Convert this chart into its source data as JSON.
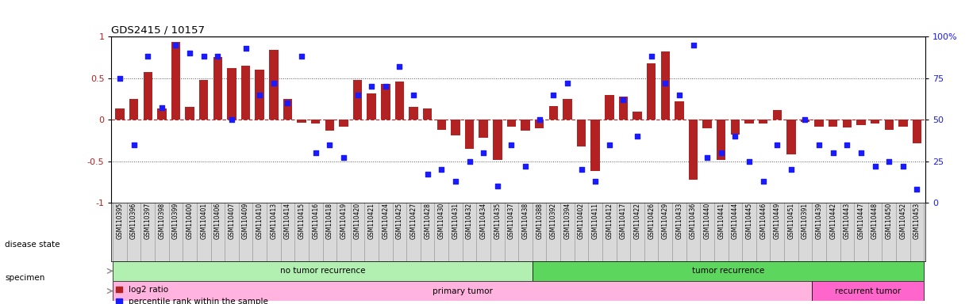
{
  "title": "GDS2415 / 10157",
  "samples": [
    "GSM110395",
    "GSM110396",
    "GSM110397",
    "GSM110398",
    "GSM110399",
    "GSM110400",
    "GSM110401",
    "GSM110406",
    "GSM110407",
    "GSM110409",
    "GSM110410",
    "GSM110413",
    "GSM110414",
    "GSM110415",
    "GSM110416",
    "GSM110418",
    "GSM110419",
    "GSM110420",
    "GSM110421",
    "GSM110424",
    "GSM110425",
    "GSM110427",
    "GSM110428",
    "GSM110430",
    "GSM110431",
    "GSM110432",
    "GSM110434",
    "GSM110435",
    "GSM110437",
    "GSM110438",
    "GSM110388",
    "GSM110392",
    "GSM110394",
    "GSM110402",
    "GSM110411",
    "GSM110412",
    "GSM110417",
    "GSM110422",
    "GSM110426",
    "GSM110429",
    "GSM110433",
    "GSM110436",
    "GSM110440",
    "GSM110441",
    "GSM110444",
    "GSM110445",
    "GSM110446",
    "GSM110449",
    "GSM110451",
    "GSM110391",
    "GSM110439",
    "GSM110442",
    "GSM110443",
    "GSM110447",
    "GSM110448",
    "GSM110450",
    "GSM110452",
    "GSM110453"
  ],
  "log2_ratio": [
    0.13,
    0.25,
    0.57,
    0.13,
    0.93,
    0.15,
    0.48,
    0.75,
    0.62,
    0.65,
    0.6,
    0.84,
    0.25,
    -0.04,
    -0.05,
    -0.13,
    -0.08,
    0.48,
    0.32,
    0.43,
    0.46,
    0.15,
    0.13,
    -0.12,
    -0.19,
    -0.35,
    -0.22,
    -0.48,
    -0.08,
    -0.13,
    -0.1,
    0.16,
    0.25,
    -0.32,
    -0.62,
    0.3,
    0.28,
    0.1,
    0.68,
    0.82,
    0.22,
    -0.72,
    -0.1,
    -0.48,
    -0.18,
    -0.05,
    -0.05,
    0.12,
    -0.42,
    -0.03,
    -0.08,
    -0.08,
    -0.09,
    -0.07,
    -0.05,
    -0.12,
    -0.08,
    -0.28
  ],
  "percentile": [
    0.75,
    0.35,
    0.88,
    0.57,
    0.95,
    0.9,
    0.88,
    0.88,
    0.5,
    0.93,
    0.65,
    0.72,
    0.6,
    0.88,
    0.3,
    0.35,
    0.27,
    0.65,
    0.7,
    0.7,
    0.82,
    0.65,
    0.17,
    0.2,
    0.13,
    0.25,
    0.3,
    0.1,
    0.35,
    0.22,
    0.5,
    0.65,
    0.72,
    0.2,
    0.13,
    0.35,
    0.62,
    0.4,
    0.88,
    0.72,
    0.65,
    0.95,
    0.27,
    0.3,
    0.4,
    0.25,
    0.13,
    0.35,
    0.2,
    0.5,
    0.35,
    0.3,
    0.35,
    0.3,
    0.22,
    0.25,
    0.22,
    0.08
  ],
  "no_recurrence_range": [
    0,
    29
  ],
  "tumor_recurrence_range": [
    30,
    57
  ],
  "primary_tumor_range": [
    0,
    49
  ],
  "recurrent_tumor_range": [
    50,
    57
  ],
  "bar_color": "#b22222",
  "dot_color": "#1a1aff",
  "no_recurrence_color": "#b2f0b2",
  "recurrence_color": "#5cd65c",
  "primary_color": "#ffb3de",
  "recurrent_color": "#ff66cc",
  "label_bg_color": "#d9d9d9",
  "ylim": [
    -1.0,
    1.0
  ],
  "yticks_left": [
    -1,
    -0.5,
    0,
    0.5,
    1
  ],
  "yticks_right": [
    0,
    25,
    50,
    75,
    100
  ],
  "background_color": "#ffffff"
}
